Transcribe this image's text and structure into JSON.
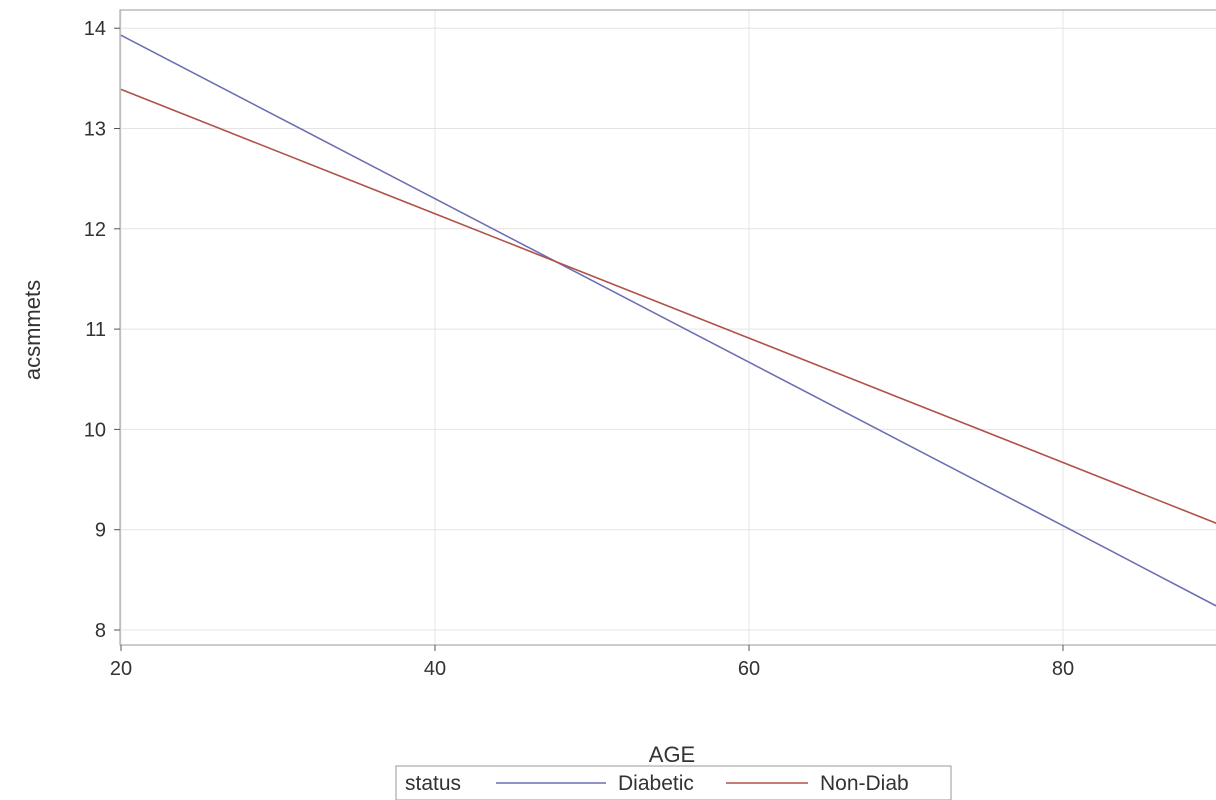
{
  "chart_data": {
    "type": "line",
    "xlabel": "AGE",
    "ylabel": "acsmmets",
    "xlim": [
      20,
      90
    ],
    "ylim": [
      8,
      14
    ],
    "x_ticks": [
      20,
      40,
      60,
      80
    ],
    "y_ticks": [
      8,
      9,
      10,
      11,
      12,
      13,
      14
    ],
    "grid": true,
    "legend": {
      "title": "status",
      "placement": "bottom-center"
    },
    "series": [
      {
        "name": "Diabetic",
        "color": "#6b6fb3",
        "x": [
          20,
          40,
          60,
          80,
          90
        ],
        "y": [
          13.93,
          12.3,
          10.67,
          9.04,
          8.22
        ]
      },
      {
        "name": "Non-Diab",
        "color": "#b0524a",
        "x": [
          20,
          40,
          60,
          80,
          90
        ],
        "y": [
          13.39,
          12.15,
          10.91,
          9.67,
          9.05
        ]
      }
    ]
  }
}
